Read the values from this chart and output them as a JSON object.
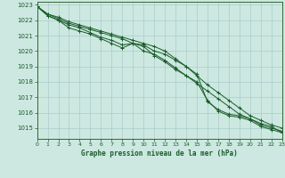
{
  "title": "Graphe pression niveau de la mer (hPa)",
  "xlim": [
    0,
    23
  ],
  "ylim": [
    1014.3,
    1023.2
  ],
  "yticks": [
    1015,
    1016,
    1017,
    1018,
    1019,
    1020,
    1021,
    1022,
    1023
  ],
  "xticks": [
    0,
    1,
    2,
    3,
    4,
    5,
    6,
    7,
    8,
    9,
    10,
    11,
    12,
    13,
    14,
    15,
    16,
    17,
    18,
    19,
    20,
    21,
    22,
    23
  ],
  "bg_color": "#cce8e0",
  "grid_color": "#aacccc",
  "line_color": "#1a5c2a",
  "border_color": "#336633",
  "tick_label_color": "#1a5c2a",
  "title_color": "#1a5c2a",
  "series": [
    [
      1022.9,
      1022.4,
      1022.1,
      1021.8,
      1021.6,
      1021.4,
      1021.2,
      1021.0,
      1020.8,
      1020.5,
      1020.0,
      1019.8,
      1019.4,
      1018.9,
      1018.4,
      1017.9,
      1017.4,
      1016.9,
      1016.4,
      1015.9,
      1015.6,
      1015.3,
      1015.1,
      1014.7
    ],
    [
      1022.9,
      1022.3,
      1022.0,
      1021.7,
      1021.5,
      1021.2,
      1020.9,
      1020.7,
      1020.4,
      1020.5,
      1020.4,
      1020.0,
      1019.8,
      1019.4,
      1019.0,
      1018.5,
      1016.7,
      1016.2,
      1015.9,
      1015.8,
      1015.6,
      1015.2,
      1015.0,
      1014.8
    ],
    [
      1022.9,
      1022.3,
      1022.0,
      1021.5,
      1021.3,
      1021.1,
      1020.8,
      1020.5,
      1020.2,
      1020.5,
      1020.3,
      1019.7,
      1019.3,
      1018.8,
      1018.4,
      1018.0,
      1016.8,
      1016.1,
      1015.8,
      1015.7,
      1015.5,
      1015.1,
      1014.9,
      1014.7
    ],
    [
      1022.9,
      1022.4,
      1022.2,
      1021.9,
      1021.7,
      1021.5,
      1021.3,
      1021.1,
      1020.9,
      1020.7,
      1020.5,
      1020.3,
      1020.0,
      1019.5,
      1019.0,
      1018.4,
      1017.8,
      1017.3,
      1016.8,
      1016.3,
      1015.8,
      1015.5,
      1015.2,
      1015.0
    ]
  ]
}
